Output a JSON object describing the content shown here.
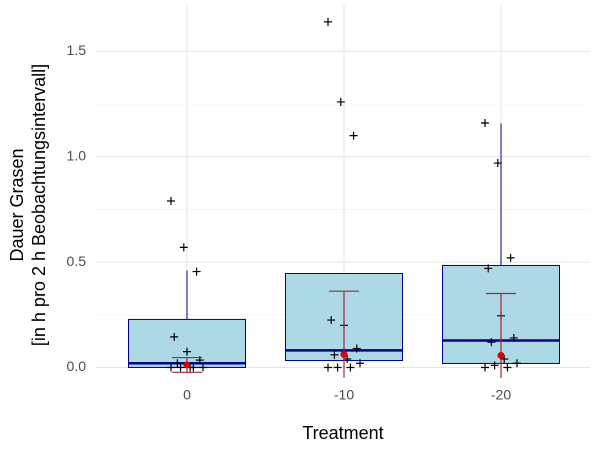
{
  "chart_data": {
    "type": "boxplot",
    "x_label": "Treatment",
    "y_label": [
      "Dauer Grasen",
      "[in h pro 2 h Beobachtungsintervall]"
    ],
    "categories": [
      "0",
      "-10",
      "-20"
    ],
    "box_fill": "#add8e6",
    "box_color": "#00008b",
    "mean_color": "#e00000",
    "error_color": "#a52a2a",
    "point_color": "#000000",
    "grid": true,
    "ylim": [
      -0.05,
      1.72
    ],
    "yticks": [
      {
        "value": 0,
        "label": "0.0"
      },
      0.5,
      {
        "value": 1,
        "label": "1.0"
      },
      1.5
    ],
    "boxes": [
      {
        "whisker_low": 0,
        "q1": 0,
        "median": 0.02,
        "q3": 0.228,
        "whisker_high": 0.46,
        "mean": 0.012,
        "error": 0.035,
        "points": [
          0.79,
          0.57,
          0.455,
          0.145,
          0.075,
          0.035,
          0.02,
          0,
          0,
          0,
          0,
          0
        ]
      },
      {
        "whisker_low": 0,
        "q1": 0.033,
        "median": 0.081,
        "q3": 0.446,
        "whisker_high": 0.446,
        "mean": 0.062,
        "error": 0.3,
        "points": [
          1.64,
          1.26,
          1.1,
          0.225,
          0.2,
          0.09,
          0.06,
          0.04,
          0.02,
          0,
          0,
          0
        ]
      },
      {
        "whisker_low": 0,
        "q1": 0.019,
        "median": 0.128,
        "q3": 0.484,
        "whisker_high": 1.158,
        "mean": 0.057,
        "error": 0.294,
        "points": [
          1.16,
          0.97,
          0.52,
          0.47,
          0.245,
          0.14,
          0.12,
          0.04,
          0.02,
          0.01,
          0,
          0
        ]
      }
    ]
  }
}
